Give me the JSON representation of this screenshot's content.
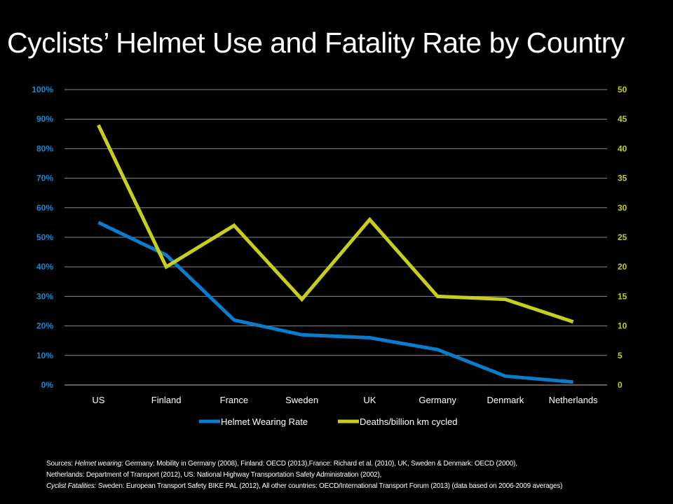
{
  "title": "Cyclists’ Helmet Use and Fatality Rate by Country",
  "chart_data": {
    "type": "line",
    "title": "Cyclists’ Helmet Use and Fatality Rate by Country",
    "categories": [
      "US",
      "Finland",
      "France",
      "Sweden",
      "UK",
      "Germany",
      "Denmark",
      "Netherlands"
    ],
    "series": [
      {
        "name": "Helmet Wearing Rate",
        "axis": "left",
        "color": "#0a7ccb",
        "values": [
          55,
          44,
          22,
          17,
          16,
          12,
          3,
          1
        ]
      },
      {
        "name": "Deaths/billion km cycled",
        "axis": "right",
        "color": "#c6d01c",
        "values": [
          44,
          20,
          27,
          14.5,
          28,
          15,
          14.5,
          10.7
        ]
      }
    ],
    "y_left": {
      "min": 0,
      "max": 100,
      "step": 10,
      "tick_labels": [
        "0%",
        "10%",
        "20%",
        "30%",
        "40%",
        "50%",
        "60%",
        "70%",
        "80%",
        "90%",
        "100%"
      ],
      "color": "#1a87cf"
    },
    "y_right": {
      "min": 0,
      "max": 50,
      "step": 5,
      "tick_labels": [
        "0",
        "5",
        "10",
        "15",
        "20",
        "25",
        "30",
        "35",
        "40",
        "45",
        "50"
      ],
      "color": "#c3ca26"
    },
    "grid": true,
    "legend_placement": "bottom"
  },
  "sources": {
    "line1_prefix": "Sources: ",
    "line1_italic": "Helmet  wearing:",
    "line1_rest": "  Germany: Mobility in Germany (2008), Finland: OECD (2013),France: Richard et al. (2010), UK, Sweden & Denmark: OECD (2000),",
    "line2": "Netherlands: Department of Transport (2012),  US: National Highway Transportation Safety Administration (2002),",
    "line3_italic": "Cyclist Fatalities:",
    "line3_rest": "  Sweden:  European Transport Safety BIKE PAL (2012),  All other countries: OECD/International Transport Forum (2013) (data based on 2006-2009 averages)"
  }
}
